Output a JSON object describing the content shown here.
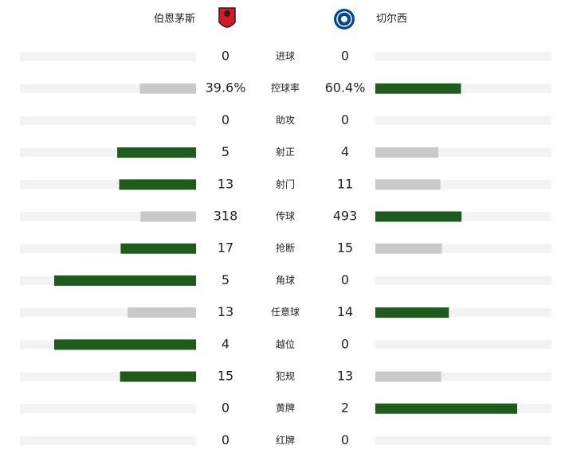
{
  "header": {
    "home": "伯恩茅斯",
    "away": "切尔西"
  },
  "stats": [
    {
      "label": "进球",
      "home": 0,
      "away": 0
    },
    {
      "label": "控球率",
      "home": 39.6,
      "away": 60.4,
      "home_label": "39.6%",
      "away_label": "60.4%"
    },
    {
      "label": "助攻",
      "home": 0,
      "away": 0
    },
    {
      "label": "射正",
      "home": 5,
      "away": 4
    },
    {
      "label": "射门",
      "home": 13,
      "away": 11
    },
    {
      "label": "传球",
      "home": 318,
      "away": 493
    },
    {
      "label": "抢断",
      "home": 17,
      "away": 15
    },
    {
      "label": "角球",
      "home": 5,
      "away": 0
    },
    {
      "label": "任意球",
      "home": 13,
      "away": 14
    },
    {
      "label": "越位",
      "home": 4,
      "away": 0
    },
    {
      "label": "犯规",
      "home": 15,
      "away": 13
    },
    {
      "label": "黄牌",
      "home": 0,
      "away": 2
    },
    {
      "label": "红牌",
      "home": 0,
      "away": 0
    }
  ]
}
